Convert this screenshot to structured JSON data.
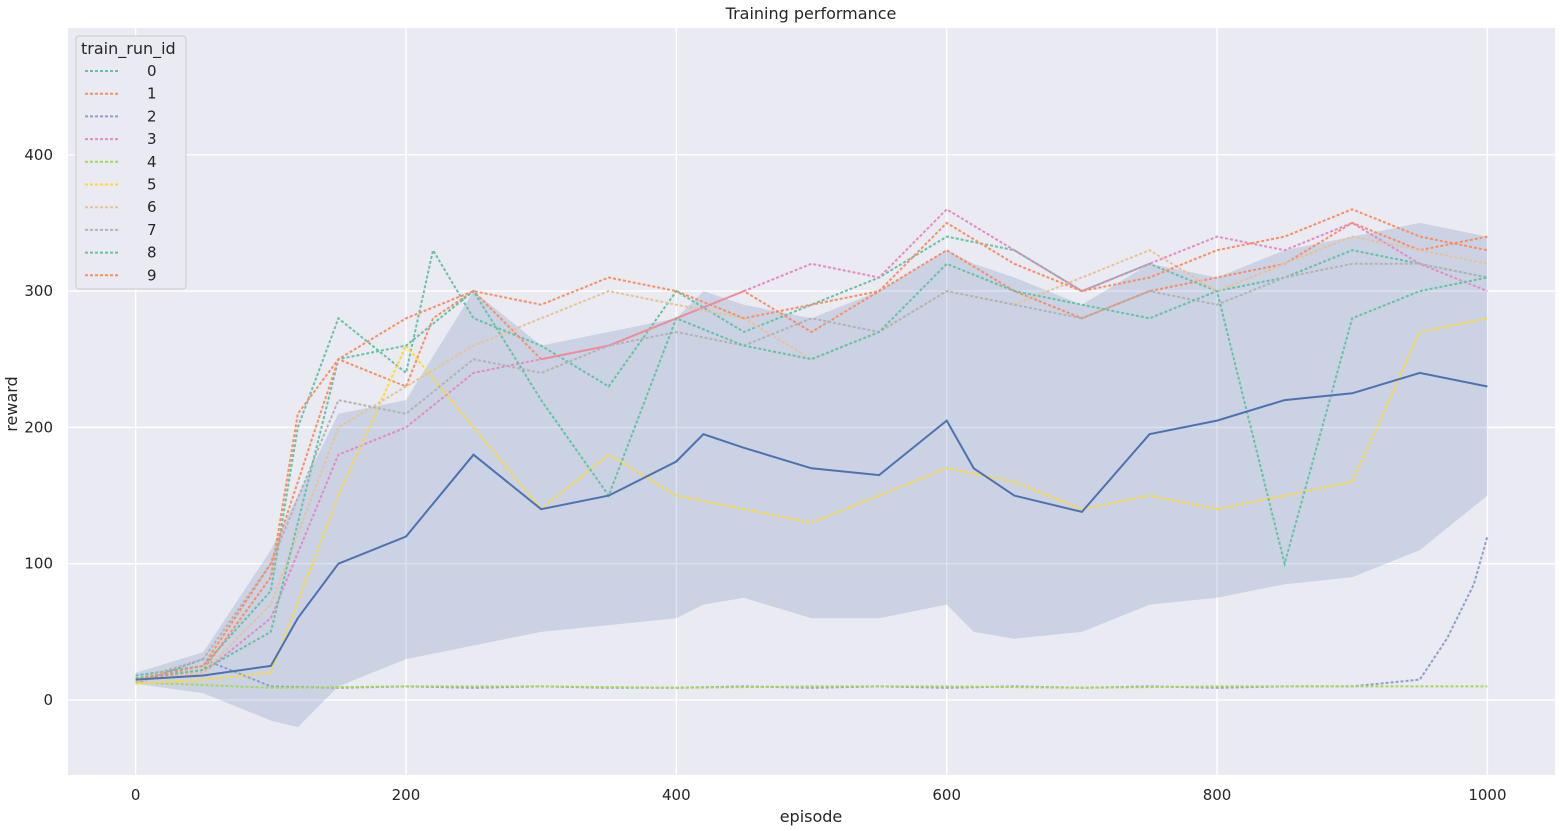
{
  "chart_data": {
    "type": "line",
    "title": "Training performance",
    "xlabel": "episode",
    "ylabel": "reward",
    "xlim": [
      -50,
      1050
    ],
    "ylim": [
      -55,
      493
    ],
    "x_ticks": [
      0,
      200,
      400,
      600,
      800,
      1000
    ],
    "y_ticks": [
      0,
      100,
      200,
      300,
      400
    ],
    "grid": true,
    "background": "#eaeaf2",
    "legend": {
      "title": "train_run_id",
      "placement": "top-left",
      "style": "dotted"
    },
    "series": [
      {
        "name": "0",
        "color": "#66c2a5",
        "x": [
          0,
          50,
          100,
          120,
          150,
          200,
          220,
          250,
          300,
          350,
          400,
          450,
          500,
          550,
          600,
          650,
          700,
          750,
          800,
          850,
          900,
          950,
          1000
        ],
        "y": [
          18,
          25,
          80,
          200,
          280,
          240,
          330,
          280,
          260,
          230,
          300,
          270,
          290,
          310,
          340,
          330,
          300,
          320,
          300,
          310,
          330,
          320,
          310
        ]
      },
      {
        "name": "1",
        "color": "#fc8d62",
        "x": [
          0,
          50,
          100,
          120,
          150,
          200,
          220,
          250,
          300,
          350,
          400,
          450,
          500,
          550,
          600,
          650,
          700,
          750,
          800,
          850,
          900,
          950,
          1000
        ],
        "y": [
          15,
          22,
          90,
          210,
          250,
          230,
          280,
          300,
          250,
          260,
          280,
          300,
          270,
          300,
          330,
          300,
          280,
          300,
          310,
          320,
          350,
          330,
          340
        ]
      },
      {
        "name": "2",
        "color": "#8da0cb",
        "x": [
          0,
          50,
          100,
          150,
          200,
          250,
          300,
          350,
          400,
          450,
          500,
          550,
          600,
          650,
          700,
          750,
          800,
          850,
          900,
          950,
          970,
          990,
          1000
        ],
        "y": [
          12,
          30,
          10,
          9,
          10,
          9,
          10,
          9,
          9,
          10,
          9,
          10,
          9,
          10,
          9,
          10,
          9,
          10,
          10,
          15,
          45,
          85,
          120
        ]
      },
      {
        "name": "3",
        "color": "#e78ac3",
        "x": [
          0,
          50,
          100,
          150,
          200,
          250,
          300,
          350,
          400,
          450,
          500,
          550,
          600,
          650,
          700,
          750,
          800,
          850,
          900,
          950,
          1000
        ],
        "y": [
          14,
          20,
          60,
          180,
          200,
          240,
          250,
          260,
          280,
          300,
          320,
          310,
          360,
          330,
          300,
          320,
          340,
          330,
          350,
          320,
          300
        ]
      },
      {
        "name": "4",
        "color": "#a6d854",
        "x": [
          0,
          100,
          200,
          300,
          400,
          500,
          600,
          700,
          800,
          900,
          1000
        ],
        "y": [
          13,
          9,
          10,
          10,
          9,
          10,
          10,
          9,
          10,
          10,
          10
        ]
      },
      {
        "name": "5",
        "color": "#ffd92f",
        "x": [
          0,
          50,
          100,
          150,
          200,
          250,
          300,
          350,
          400,
          450,
          500,
          550,
          600,
          650,
          700,
          750,
          800,
          850,
          900,
          950,
          1000
        ],
        "y": [
          12,
          15,
          20,
          150,
          260,
          200,
          140,
          180,
          150,
          140,
          130,
          150,
          170,
          160,
          140,
          150,
          140,
          150,
          160,
          270,
          280
        ]
      },
      {
        "name": "6",
        "color": "#e5c494",
        "x": [
          0,
          50,
          100,
          150,
          200,
          250,
          300,
          350,
          400,
          450,
          500,
          550,
          600,
          650,
          700,
          750,
          800,
          850,
          900,
          950,
          1000
        ],
        "y": [
          14,
          20,
          70,
          200,
          230,
          260,
          280,
          300,
          290,
          280,
          250,
          270,
          300,
          290,
          310,
          330,
          300,
          320,
          340,
          330,
          320
        ]
      },
      {
        "name": "7",
        "color": "#b3b3b3",
        "x": [
          0,
          50,
          100,
          150,
          200,
          250,
          300,
          350,
          400,
          450,
          500,
          550,
          600,
          650,
          700,
          750,
          800,
          850,
          900,
          950,
          1000
        ],
        "y": [
          15,
          30,
          100,
          220,
          210,
          250,
          240,
          260,
          270,
          260,
          280,
          270,
          300,
          290,
          280,
          300,
          290,
          310,
          320,
          320,
          310
        ]
      },
      {
        "name": "8",
        "color": "#66c2a5",
        "x": [
          0,
          50,
          100,
          150,
          200,
          250,
          300,
          350,
          400,
          450,
          500,
          550,
          600,
          650,
          700,
          750,
          800,
          850,
          900,
          950,
          1000
        ],
        "y": [
          16,
          22,
          50,
          250,
          260,
          300,
          220,
          150,
          280,
          260,
          250,
          270,
          320,
          300,
          290,
          280,
          300,
          100,
          280,
          300,
          310
        ]
      },
      {
        "name": "9",
        "color": "#fc8d62",
        "x": [
          0,
          50,
          100,
          150,
          200,
          250,
          300,
          350,
          400,
          450,
          500,
          550,
          600,
          650,
          700,
          750,
          800,
          850,
          900,
          950,
          1000
        ],
        "y": [
          15,
          25,
          100,
          250,
          280,
          300,
          290,
          310,
          300,
          280,
          290,
          300,
          350,
          320,
          300,
          310,
          330,
          340,
          360,
          340,
          330
        ]
      }
    ],
    "mean": {
      "color": "#4c72b0",
      "band_color": "#4c72b0",
      "x": [
        0,
        50,
        100,
        120,
        150,
        200,
        250,
        300,
        350,
        400,
        420,
        450,
        500,
        550,
        600,
        620,
        650,
        700,
        750,
        800,
        850,
        900,
        950,
        1000
      ],
      "y": [
        15,
        18,
        25,
        60,
        100,
        120,
        180,
        140,
        150,
        175,
        195,
        185,
        170,
        165,
        205,
        170,
        150,
        138,
        195,
        205,
        220,
        225,
        240,
        230
      ],
      "lower": [
        12,
        5,
        -15,
        -20,
        10,
        30,
        40,
        50,
        55,
        60,
        70,
        75,
        60,
        60,
        70,
        50,
        45,
        50,
        70,
        75,
        85,
        90,
        110,
        150
      ],
      "upper": [
        20,
        35,
        110,
        150,
        210,
        220,
        300,
        260,
        270,
        280,
        300,
        290,
        280,
        300,
        330,
        320,
        310,
        290,
        320,
        310,
        330,
        340,
        350,
        340
      ]
    }
  }
}
